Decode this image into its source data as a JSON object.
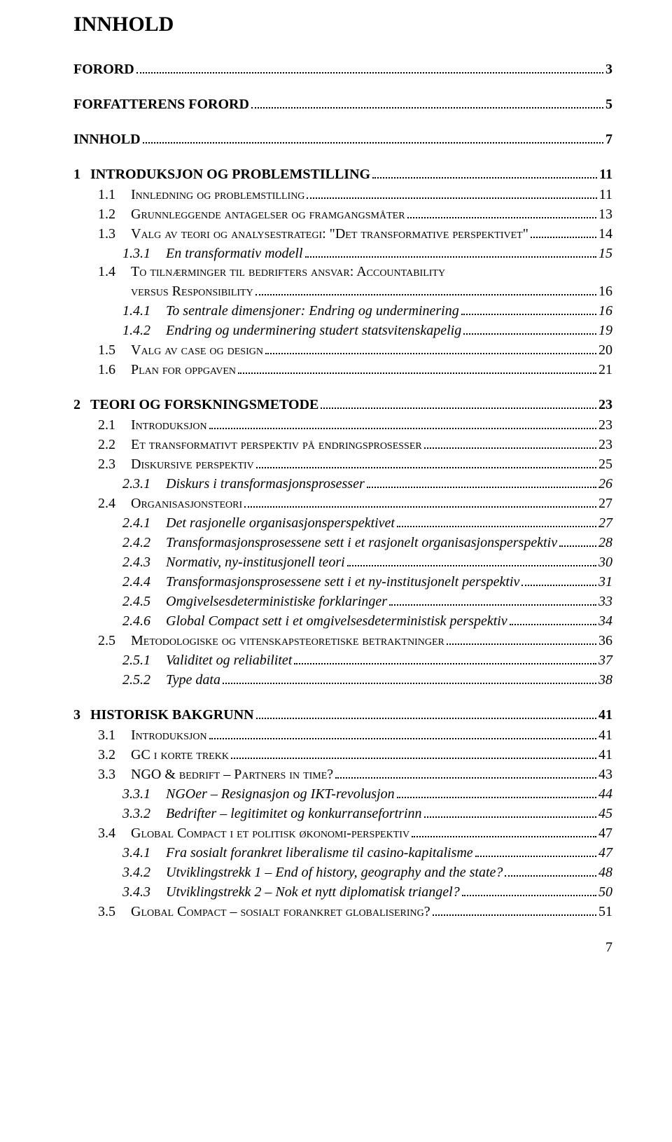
{
  "title": "INNHOLD",
  "page_number": "7",
  "entries": [
    {
      "level": 1,
      "num": "",
      "text": "FORORD",
      "page": "3"
    },
    {
      "level": 1,
      "num": "",
      "text": "FORFATTERENS FORORD",
      "page": "5"
    },
    {
      "level": 1,
      "num": "",
      "text": "INNHOLD",
      "page": "7"
    },
    {
      "level": 1,
      "num": "1",
      "text": "INTRODUKSJON OG PROBLEMSTILLING",
      "page": "11"
    },
    {
      "level": 2,
      "num": "1.1",
      "text": "Innledning og problemstilling",
      "page": "11"
    },
    {
      "level": 2,
      "num": "1.2",
      "text": "Grunnleggende antagelser og framgangsmåter",
      "page": "13"
    },
    {
      "level": 2,
      "num": "1.3",
      "text": "Valg av teori og analysestrategi: \"Det transformative perspektivet\"",
      "page": "14"
    },
    {
      "level": 3,
      "num": "1.3.1",
      "text": "En transformativ modell",
      "page": "15"
    },
    {
      "level": 2,
      "num": "1.4",
      "text": "To tilnærminger til bedrifters ansvar: Accountability",
      "cont": "versus Responsibility",
      "page": "16"
    },
    {
      "level": 3,
      "num": "1.4.1",
      "text": "To sentrale dimensjoner: Endring og underminering",
      "page": "16"
    },
    {
      "level": 3,
      "num": "1.4.2",
      "text": "Endring og underminering studert statsvitenskapelig",
      "page": "19"
    },
    {
      "level": 2,
      "num": "1.5",
      "text": "Valg av case og design",
      "page": "20"
    },
    {
      "level": 2,
      "num": "1.6",
      "text": "Plan for oppgaven",
      "page": "21"
    },
    {
      "level": 1,
      "num": "2",
      "text": "TEORI OG FORSKNINGSMETODE",
      "page": "23"
    },
    {
      "level": 2,
      "num": "2.1",
      "text": "Introduksjon",
      "page": "23"
    },
    {
      "level": 2,
      "num": "2.2",
      "text": "Et transformativt perspektiv på endringsprosesser",
      "page": "23"
    },
    {
      "level": 2,
      "num": "2.3",
      "text": "Diskursive perspektiv",
      "page": "25"
    },
    {
      "level": 3,
      "num": "2.3.1",
      "text": "Diskurs i transformasjonsprosesser",
      "page": "26"
    },
    {
      "level": 2,
      "num": "2.4",
      "text": "Organisasjonsteori",
      "page": "27"
    },
    {
      "level": 3,
      "num": "2.4.1",
      "text": "Det rasjonelle organisasjonsperspektivet",
      "page": "27"
    },
    {
      "level": 3,
      "num": "2.4.2",
      "text": "Transformasjonsprosessene sett i et rasjonelt organisasjonsperspektiv",
      "page": "28"
    },
    {
      "level": 3,
      "num": "2.4.3",
      "text": "Normativ, ny-institusjonell teori",
      "page": "30"
    },
    {
      "level": 3,
      "num": "2.4.4",
      "text": "Transformasjonsprosessene sett i et ny-institusjonelt perspektiv",
      "page": "31"
    },
    {
      "level": 3,
      "num": "2.4.5",
      "text": "Omgivelsesdeterministiske forklaringer",
      "page": "33"
    },
    {
      "level": 3,
      "num": "2.4.6",
      "text": "Global Compact sett i et omgivelsesdeterministisk perspektiv",
      "page": "34"
    },
    {
      "level": 2,
      "num": "2.5",
      "text": "Metodologiske og vitenskapsteoretiske betraktninger",
      "page": "36"
    },
    {
      "level": 3,
      "num": "2.5.1",
      "text": "Validitet og reliabilitet",
      "page": "37"
    },
    {
      "level": 3,
      "num": "2.5.2",
      "text": "Type data",
      "page": "38"
    },
    {
      "level": 1,
      "num": "3",
      "text": "HISTORISK BAKGRUNN",
      "page": "41"
    },
    {
      "level": 2,
      "num": "3.1",
      "text": "Introduksjon",
      "page": "41"
    },
    {
      "level": 2,
      "num": "3.2",
      "text": "GC i korte trekk",
      "page": "41"
    },
    {
      "level": 2,
      "num": "3.3",
      "text": "NGO & bedrift – Partners in time?",
      "page": "43"
    },
    {
      "level": 3,
      "num": "3.3.1",
      "text": "NGOer – Resignasjon og IKT-revolusjon",
      "page": "44"
    },
    {
      "level": 3,
      "num": "3.3.2",
      "text": "Bedrifter – legitimitet og konkurransefortrinn",
      "page": "45"
    },
    {
      "level": 2,
      "num": "3.4",
      "text": "Global Compact i et politisk økonomi-perspektiv",
      "page": "47"
    },
    {
      "level": 3,
      "num": "3.4.1",
      "text": "Fra sosialt forankret liberalisme til casino-kapitalisme",
      "page": "47"
    },
    {
      "level": 3,
      "num": "3.4.2",
      "text": "Utviklingstrekk 1 – End of history, geography and the state?",
      "page": "48"
    },
    {
      "level": 3,
      "num": "3.4.3",
      "text": "Utviklingstrekk 2 – Nok et nytt diplomatisk triangel?",
      "page": "50"
    },
    {
      "level": 2,
      "num": "3.5",
      "text": "Global Compact – sosialt forankret globalisering?",
      "page": "51"
    }
  ]
}
